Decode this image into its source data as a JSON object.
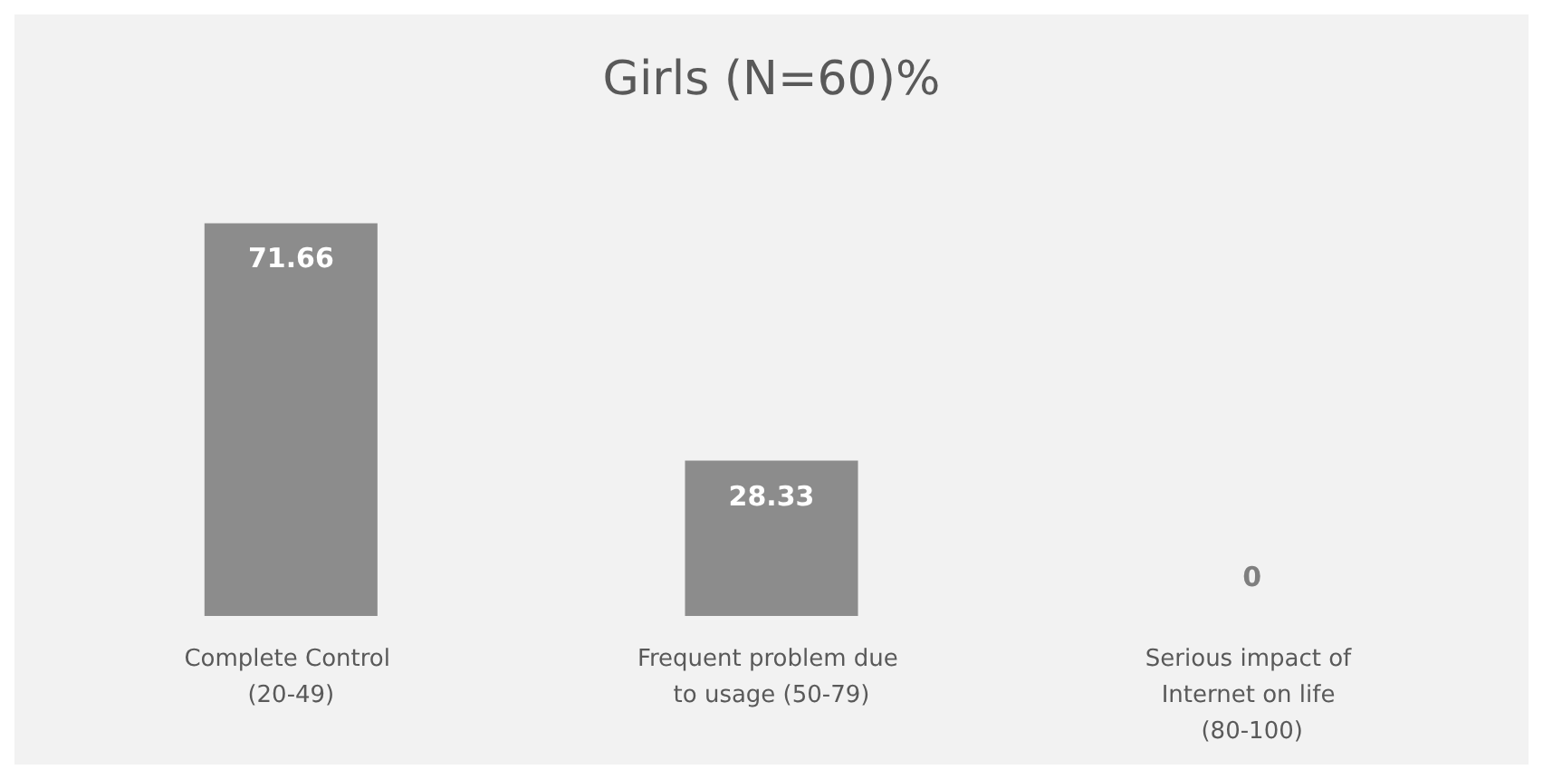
{
  "chart_data": {
    "type": "bar",
    "title": "Girls (N=60)%",
    "categories": [
      "Complete Control (20-49)",
      "Frequent problem due to usage (50-79)",
      "Serious impact of Internet on life (80-100)"
    ],
    "values": [
      71.66,
      28.33,
      0
    ],
    "color": "#8c8c8c",
    "data_labels": true,
    "grid": false
  }
}
